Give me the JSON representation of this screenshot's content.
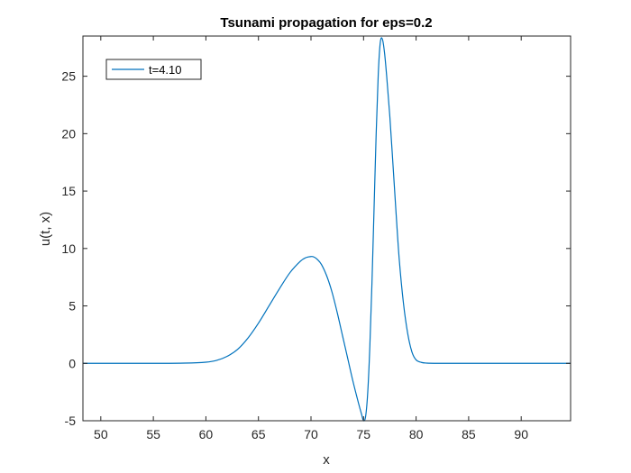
{
  "chart_data": {
    "type": "line",
    "title": "Tsunami propagation for eps=0.2",
    "xlabel": "x",
    "ylabel": "u(t, x)",
    "xlim": [
      48.3,
      94.7
    ],
    "ylim": [
      -5,
      28.5
    ],
    "xticks": [
      50,
      55,
      60,
      65,
      70,
      75,
      80,
      85,
      90
    ],
    "yticks": [
      -5,
      0,
      5,
      10,
      15,
      20,
      25
    ],
    "xtick_labels": [
      "50",
      "55",
      "60",
      "65",
      "70",
      "75",
      "80",
      "85",
      "90"
    ],
    "ytick_labels": [
      "-5",
      "0",
      "5",
      "10",
      "15",
      "20",
      "25"
    ],
    "grid": false,
    "legend_position": "top-left",
    "series": [
      {
        "name": "t=4.10",
        "color": "#0072BD",
        "x": [
          48.3,
          55,
          58,
          60,
          61,
          62,
          63,
          64,
          65,
          66,
          67,
          68,
          69,
          69.5,
          70,
          70.3,
          70.6,
          71,
          71.5,
          72,
          72.5,
          73,
          73.5,
          74,
          74.5,
          74.8,
          75.0,
          75.2,
          75.4,
          75.6,
          75.8,
          76.0,
          76.2,
          76.4,
          76.6,
          76.8,
          77.0,
          77.2,
          77.5,
          77.8,
          78.1,
          78.4,
          78.8,
          79.2,
          79.6,
          80.0,
          80.5,
          81,
          82,
          85,
          94.7
        ],
        "y": [
          0,
          0,
          0.02,
          0.1,
          0.25,
          0.6,
          1.2,
          2.2,
          3.5,
          5.0,
          6.5,
          7.9,
          8.9,
          9.2,
          9.3,
          9.25,
          9.05,
          8.6,
          7.6,
          6.2,
          4.4,
          2.4,
          0.4,
          -1.6,
          -3.4,
          -4.4,
          -5.0,
          -4.6,
          -2.5,
          1.5,
          7.0,
          13.5,
          20.0,
          25.2,
          28.0,
          28.2,
          27.0,
          25.0,
          21.5,
          17.3,
          13.0,
          9.0,
          5.2,
          2.6,
          1.0,
          0.3,
          0.08,
          0.02,
          0,
          0,
          0
        ]
      }
    ]
  }
}
